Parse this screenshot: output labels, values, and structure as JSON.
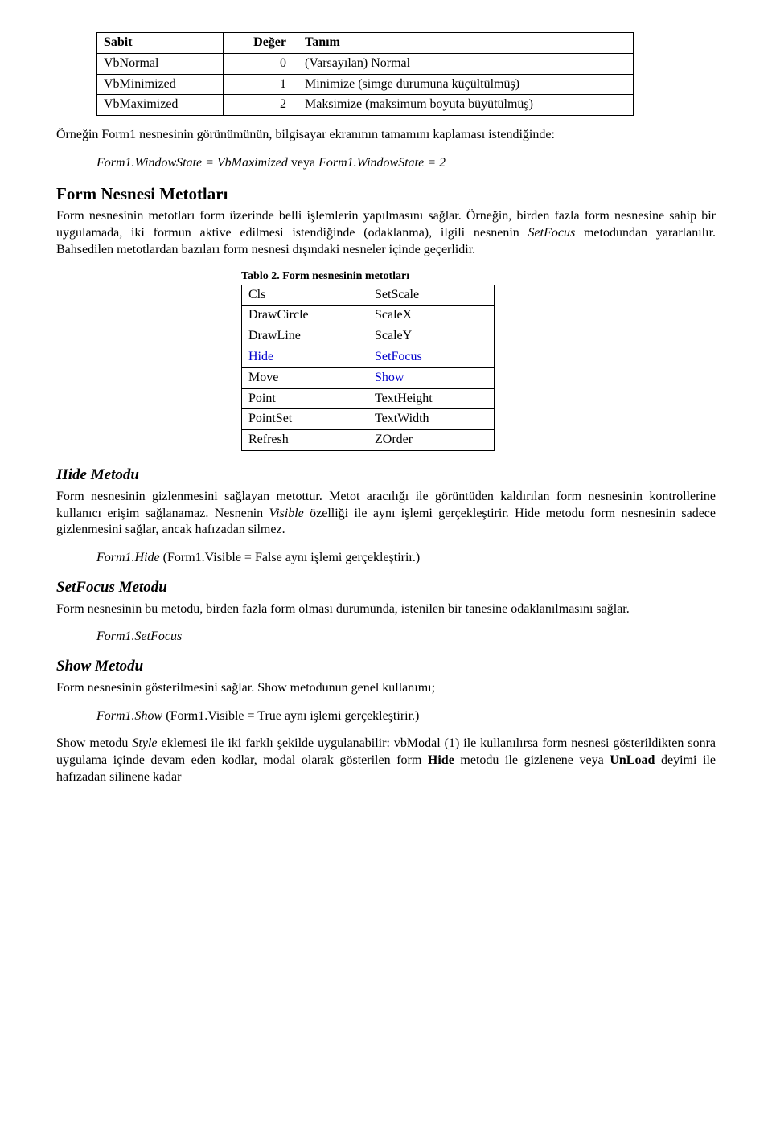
{
  "table1": {
    "headers": [
      "Sabit",
      "Değer",
      "Tanım"
    ],
    "rows": [
      [
        "VbNormal",
        "0",
        "(Varsayılan) Normal"
      ],
      [
        "VbMinimized",
        "1",
        "Minimize (simge durumuna küçültülmüş)"
      ],
      [
        "VbMaximized",
        "2",
        "Maksimize (maksimum boyuta büyütülmüş)"
      ]
    ]
  },
  "para1": "Örneğin Form1 nesnesinin görünümünün, bilgisayar ekranının tamamını kaplaması istendiğinde:",
  "code1_a": "Form1.WindowState = VbMaximized",
  "code1_mid": " veya ",
  "code1_b": "Form1.WindowState = 2",
  "section1": "Form Nesnesi Metotları",
  "para2_a": "Form nesnesinin metotları form üzerinde belli işlemlerin yapılmasını sağlar. Örneğin, birden fazla form nesnesine sahip bir uygulamada, iki formun aktive edilmesi istendiğinde (odaklanma), ilgili nesnenin ",
  "para2_b": "SetFocus",
  "para2_c": " metodundan yararlanılır. Bahsedilen metotlardan bazıları form nesnesi dışındaki nesneler içinde geçerlidir.",
  "table2_caption": "Tablo 2. Form nesnesinin metotları",
  "table2": {
    "rows": [
      [
        "Cls",
        "SetScale",
        false,
        false
      ],
      [
        "DrawCircle",
        "ScaleX",
        false,
        false
      ],
      [
        "DrawLine",
        "ScaleY",
        false,
        false
      ],
      [
        "Hide",
        "SetFocus",
        true,
        true
      ],
      [
        "Move",
        "Show",
        false,
        true
      ],
      [
        "Point",
        "TextHeight",
        false,
        false
      ],
      [
        "PointSet",
        "TextWidth",
        false,
        false
      ],
      [
        "Refresh",
        "ZOrder",
        false,
        false
      ]
    ]
  },
  "sub_hide": "Hide Metodu",
  "para_hide_a": "Form nesnesinin gizlenmesini sağlayan metottur. Metot aracılığı ile görüntüden kaldırılan form nesnesinin kontrollerine kullanıcı erişim sağlanamaz. Nesnenin ",
  "para_hide_b": "Visible",
  "para_hide_c": " özelliği ile aynı işlemi gerçekleştirir. Hide metodu form nesnesinin sadece gizlenmesini sağlar, ancak hafızadan silmez.",
  "code_hide_a": "Form1.Hide",
  "code_hide_b": "  (Form1.Visible = False aynı işlemi gerçekleştirir.)",
  "sub_setfocus": "SetFocus Metodu",
  "para_setfocus": "Form nesnesinin bu metodu, birden fazla form olması durumunda, istenilen bir tanesine odaklanılmasını sağlar.",
  "code_setfocus": "Form1.SetFocus",
  "sub_show": "Show Metodu",
  "para_show": "Form nesnesinin gösterilmesini sağlar. Show metodunun genel kullanımı;",
  "code_show_a": "Form1.Show",
  "code_show_b": " (Form1.Visible = True aynı işlemi gerçekleştirir.)",
  "para_last_a": "Show metodu ",
  "para_last_b": "Style",
  "para_last_c": " eklemesi ile iki farklı şekilde uygulanabilir: vbModal (1) ile kullanılırsa form nesnesi gösterildikten sonra uygulama içinde devam eden kodlar, modal olarak gösterilen form ",
  "para_last_d": "Hide",
  "para_last_e": " metodu ile gizlenene veya ",
  "para_last_f": "UnLoad",
  "para_last_g": " deyimi ile hafızadan silinene kadar"
}
